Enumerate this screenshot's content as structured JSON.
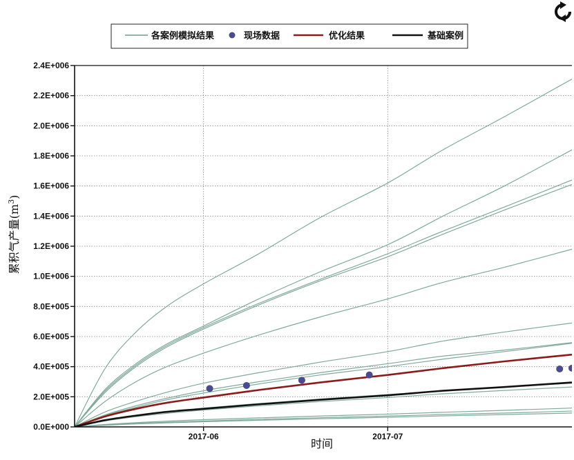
{
  "toolbar": {
    "refresh_icon": "refresh-icon"
  },
  "colors": {
    "simulation": "#7fa99b",
    "field": "#4a4a8e",
    "optimized": "#8b1a1a",
    "base": "#111111",
    "grid": "#888888"
  },
  "chart_data": {
    "type": "line",
    "xlabel": "时间",
    "ylabel": "累积气产量(m³)",
    "ylabel_main": "累积气产量(m",
    "ylabel_sup": "3",
    "ylabel_close": ")",
    "xlim": [
      "2017-05-11",
      "2017-07-31"
    ],
    "ylim": [
      0,
      2400000
    ],
    "y_ticks": [
      {
        "value": 0,
        "label": "0.0E+000"
      },
      {
        "value": 200000,
        "label": "2.0E+005"
      },
      {
        "value": 400000,
        "label": "4.0E+005"
      },
      {
        "value": 600000,
        "label": "6.0E+005"
      },
      {
        "value": 800000,
        "label": "8.0E+005"
      },
      {
        "value": 1000000,
        "label": "1.0E+006"
      },
      {
        "value": 1200000,
        "label": "1.2E+006"
      },
      {
        "value": 1400000,
        "label": "1.4E+006"
      },
      {
        "value": 1600000,
        "label": "1.6E+006"
      },
      {
        "value": 1800000,
        "label": "1.8E+006"
      },
      {
        "value": 2000000,
        "label": "2.0E+006"
      },
      {
        "value": 2200000,
        "label": "2.2E+006"
      },
      {
        "value": 2400000,
        "label": "2.4E+006"
      }
    ],
    "x_ticks": [
      {
        "value": "2017-06-01",
        "label": "2017-06"
      },
      {
        "value": "2017-07-01",
        "label": "2017-07"
      }
    ],
    "grid": true,
    "legend": {
      "position": "top-center",
      "entries": [
        {
          "label": "各案例模拟结果",
          "kind": "line",
          "color_key": "simulation"
        },
        {
          "label": "现场数据",
          "kind": "marker",
          "color_key": "field"
        },
        {
          "label": "优化结果",
          "kind": "line",
          "color_key": "optimized"
        },
        {
          "label": "基础案例",
          "kind": "line",
          "color_key": "base"
        }
      ]
    },
    "series": [
      {
        "name": "各案例模拟结果",
        "kind": "line",
        "color_key": "simulation",
        "width": 1.2,
        "curves": [
          {
            "x": [
              "2017-05-11",
              "2017-05-16",
              "2017-05-21",
              "2017-05-26",
              "2017-06-01",
              "2017-06-10",
              "2017-06-20",
              "2017-07-01",
              "2017-07-10",
              "2017-07-20",
              "2017-07-31"
            ],
            "y": [
              0,
              390000,
              630000,
              800000,
              950000,
              1150000,
              1390000,
              1620000,
              1840000,
              2060000,
              2310000
            ]
          },
          {
            "x": [
              "2017-05-11",
              "2017-05-16",
              "2017-05-21",
              "2017-05-26",
              "2017-06-01",
              "2017-06-10",
              "2017-06-20",
              "2017-07-01",
              "2017-07-10",
              "2017-07-20",
              "2017-07-31"
            ],
            "y": [
              0,
              250000,
              420000,
              550000,
              670000,
              850000,
              1030000,
              1210000,
              1400000,
              1600000,
              1840000
            ]
          },
          {
            "x": [
              "2017-05-11",
              "2017-05-16",
              "2017-05-21",
              "2017-05-26",
              "2017-06-01",
              "2017-06-10",
              "2017-06-20",
              "2017-07-01",
              "2017-07-10",
              "2017-07-20",
              "2017-07-31"
            ],
            "y": [
              0,
              240000,
              410000,
              540000,
              660000,
              820000,
              980000,
              1150000,
              1300000,
              1460000,
              1640000
            ]
          },
          {
            "x": [
              "2017-05-11",
              "2017-05-16",
              "2017-05-21",
              "2017-05-26",
              "2017-06-01",
              "2017-06-10",
              "2017-06-20",
              "2017-07-01",
              "2017-07-10",
              "2017-07-20",
              "2017-07-31"
            ],
            "y": [
              0,
              230000,
              400000,
              530000,
              650000,
              810000,
              970000,
              1130000,
              1280000,
              1440000,
              1610000
            ]
          },
          {
            "x": [
              "2017-05-11",
              "2017-05-16",
              "2017-05-21",
              "2017-05-26",
              "2017-06-01",
              "2017-06-10",
              "2017-06-20",
              "2017-07-01",
              "2017-07-10",
              "2017-07-20",
              "2017-07-31"
            ],
            "y": [
              0,
              170000,
              300000,
              400000,
              490000,
              610000,
              730000,
              850000,
              960000,
              1060000,
              1180000
            ]
          },
          {
            "x": [
              "2017-05-11",
              "2017-05-16",
              "2017-05-21",
              "2017-05-26",
              "2017-06-01",
              "2017-06-10",
              "2017-06-20",
              "2017-07-01",
              "2017-07-10",
              "2017-07-20",
              "2017-07-31"
            ],
            "y": [
              0,
              100000,
              170000,
              230000,
              290000,
              360000,
              430000,
              500000,
              570000,
              630000,
              690000
            ]
          },
          {
            "x": [
              "2017-05-11",
              "2017-05-16",
              "2017-05-21",
              "2017-05-26",
              "2017-06-01",
              "2017-06-10",
              "2017-06-20",
              "2017-07-01",
              "2017-07-10",
              "2017-07-20",
              "2017-07-31"
            ],
            "y": [
              0,
              80000,
              140000,
              190000,
              240000,
              300000,
              360000,
              420000,
              470000,
              510000,
              560000
            ]
          },
          {
            "x": [
              "2017-05-11",
              "2017-05-16",
              "2017-05-21",
              "2017-05-26",
              "2017-06-01",
              "2017-06-10",
              "2017-06-20",
              "2017-07-01",
              "2017-07-10",
              "2017-07-20",
              "2017-07-31"
            ],
            "y": [
              0,
              75000,
              130000,
              180000,
              225000,
              285000,
              345000,
              400000,
              450000,
              500000,
              555000
            ]
          },
          {
            "x": [
              "2017-05-11",
              "2017-05-16",
              "2017-05-21",
              "2017-05-26",
              "2017-06-01",
              "2017-06-10",
              "2017-06-20",
              "2017-07-01",
              "2017-07-10",
              "2017-07-20",
              "2017-07-31"
            ],
            "y": [
              0,
              45000,
              75000,
              100000,
              125000,
              155000,
              185000,
              215000,
              240000,
              265000,
              290000
            ]
          },
          {
            "x": [
              "2017-05-11",
              "2017-05-16",
              "2017-05-21",
              "2017-05-26",
              "2017-06-01",
              "2017-06-10",
              "2017-06-20",
              "2017-07-01",
              "2017-07-10",
              "2017-07-20",
              "2017-07-31"
            ],
            "y": [
              0,
              40000,
              68000,
              90000,
              112000,
              140000,
              168000,
              195000,
              220000,
              242000,
              265000
            ]
          },
          {
            "x": [
              "2017-05-11",
              "2017-05-16",
              "2017-05-21",
              "2017-05-26",
              "2017-06-01",
              "2017-06-10",
              "2017-06-20",
              "2017-07-01",
              "2017-07-10",
              "2017-07-20",
              "2017-07-31"
            ],
            "y": [
              0,
              16000,
              28000,
              38000,
              48000,
              60000,
              72000,
              85000,
              97000,
              110000,
              125000
            ]
          },
          {
            "x": [
              "2017-05-11",
              "2017-05-16",
              "2017-05-21",
              "2017-05-26",
              "2017-06-01",
              "2017-06-10",
              "2017-06-20",
              "2017-07-01",
              "2017-07-10",
              "2017-07-20",
              "2017-07-31"
            ],
            "y": [
              0,
              13000,
              23000,
              31000,
              39000,
              50000,
              61000,
              72000,
              82000,
              92000,
              105000
            ]
          },
          {
            "x": [
              "2017-05-11",
              "2017-05-16",
              "2017-05-21",
              "2017-05-26",
              "2017-06-01",
              "2017-06-10",
              "2017-06-20",
              "2017-07-01",
              "2017-07-10",
              "2017-07-20",
              "2017-07-31"
            ],
            "y": [
              0,
              11000,
              20000,
              27000,
              34000,
              44000,
              54000,
              64000,
              73000,
              82000,
              92000
            ]
          }
        ]
      },
      {
        "name": "优化结果",
        "kind": "line",
        "color_key": "optimized",
        "width": 2.6,
        "x": [
          "2017-05-11",
          "2017-05-16",
          "2017-05-21",
          "2017-05-26",
          "2017-06-01",
          "2017-06-10",
          "2017-06-20",
          "2017-07-01",
          "2017-07-10",
          "2017-07-20",
          "2017-07-31"
        ],
        "y": [
          0,
          70000,
          120000,
          160000,
          195000,
          245000,
          295000,
          345000,
          390000,
          435000,
          480000
        ]
      },
      {
        "name": "基础案例",
        "kind": "line",
        "color_key": "base",
        "width": 2.6,
        "x": [
          "2017-05-11",
          "2017-05-16",
          "2017-05-21",
          "2017-05-26",
          "2017-06-01",
          "2017-06-10",
          "2017-06-20",
          "2017-07-01",
          "2017-07-10",
          "2017-07-20",
          "2017-07-31"
        ],
        "y": [
          0,
          45000,
          75000,
          100000,
          120000,
          150000,
          180000,
          210000,
          240000,
          265000,
          295000
        ]
      },
      {
        "name": "现场数据",
        "kind": "scatter",
        "color_key": "field",
        "x": [
          "2017-06-02",
          "2017-06-08",
          "2017-06-17",
          "2017-06-28",
          "2017-07-29",
          "2017-07-31"
        ],
        "y": [
          255000,
          275000,
          310000,
          345000,
          385000,
          390000
        ]
      }
    ]
  }
}
